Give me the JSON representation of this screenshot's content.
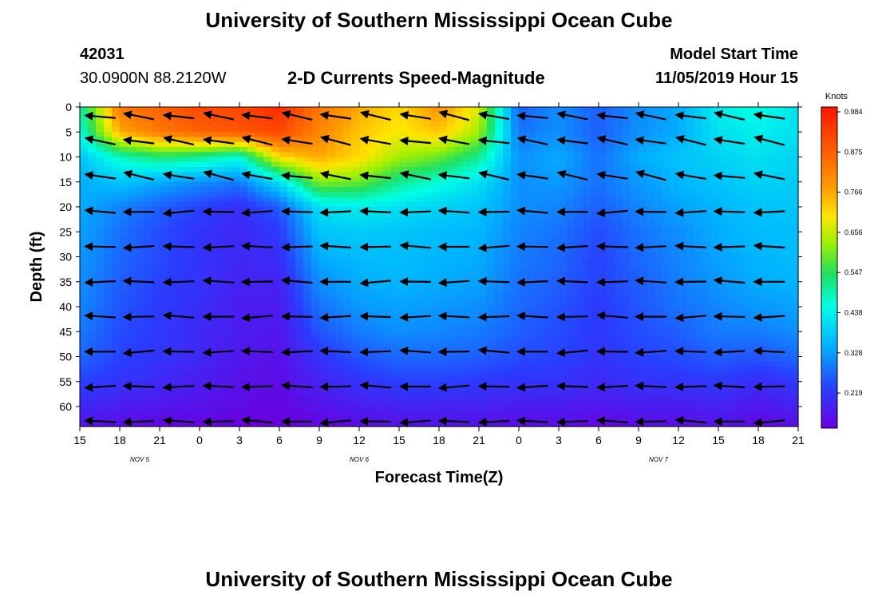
{
  "page": {
    "title_top": "University of Southern Mississippi Ocean Cube",
    "title_bottom": "University of Southern Mississippi Ocean Cube",
    "station_id": "42031",
    "station_coords": "30.0900N 88.2120W",
    "plot_title": "2-D Currents Speed-Magnitude",
    "model_start_label": "Model Start Time",
    "model_start_value": "11/05/2019 Hour 15"
  },
  "colors": {
    "scale": [
      "#6a00e0",
      "#2a3cff",
      "#00b4ff",
      "#00ffe6",
      "#20e060",
      "#a0f000",
      "#ffe600",
      "#ff9a00",
      "#ff5a00",
      "#ff1500"
    ],
    "arrow": "#000000"
  },
  "chart_data": {
    "type": "heatmap",
    "title": "2-D Currents Speed-Magnitude",
    "xlabel": "Forecast Time(Z)",
    "ylabel": "Depth (ft)",
    "x_tick_labels": [
      "15",
      "18",
      "21",
      "0",
      "3",
      "6",
      "9",
      "12",
      "15",
      "18",
      "21",
      "0",
      "3",
      "6",
      "9",
      "12",
      "15",
      "18",
      "21"
    ],
    "x_hours": [
      0,
      3,
      6,
      9,
      12,
      15,
      18,
      21,
      24,
      27,
      30,
      33,
      36,
      39,
      42,
      45,
      48,
      51,
      54
    ],
    "date_labels": [
      {
        "text": "NOV 5",
        "hour": 4.5
      },
      {
        "text": "NOV 6",
        "hour": 21
      },
      {
        "text": "NOV 7",
        "hour": 43.5
      }
    ],
    "y_ticks": [
      0,
      5,
      10,
      15,
      20,
      25,
      30,
      35,
      40,
      45,
      50,
      55,
      60
    ],
    "xlim": [
      0,
      54
    ],
    "ylim": [
      0,
      64
    ],
    "colorbar": {
      "unit": "Knots",
      "labels": [
        "0.984",
        "0.875",
        "0.766",
        "0.656",
        "0.547",
        "0.438",
        "0.328",
        "0.219"
      ],
      "range": [
        0.11,
        0.984
      ]
    },
    "arrow_hours": [
      1.8,
      4.7,
      7.7,
      10.7,
      13.6,
      16.6,
      19.5,
      22.5,
      25.5,
      28.4,
      31.4,
      34.3,
      37.3,
      40.3,
      43.2,
      46.2,
      49.1,
      52.1
    ],
    "arrow_depths": [
      2,
      7,
      14,
      21,
      28,
      35,
      42,
      49,
      56,
      63
    ],
    "speed_grid_knots": {
      "depths_ft": [
        0,
        5,
        10,
        15,
        20,
        25,
        30,
        35,
        40,
        45,
        50,
        55,
        60,
        64
      ],
      "hours": [
        0,
        3,
        6,
        9,
        12,
        15,
        18,
        21,
        24,
        27,
        30,
        33,
        36,
        39,
        42,
        45,
        48,
        51,
        54
      ],
      "values": [
        [
          0.47,
          0.82,
          0.86,
          0.9,
          0.9,
          0.95,
          0.82,
          0.75,
          0.7,
          0.78,
          0.66,
          0.25,
          0.3,
          0.25,
          0.3,
          0.33,
          0.42,
          0.45,
          0.4
        ],
        [
          0.44,
          0.75,
          0.82,
          0.86,
          0.88,
          0.9,
          0.8,
          0.72,
          0.68,
          0.72,
          0.62,
          0.27,
          0.3,
          0.25,
          0.3,
          0.33,
          0.4,
          0.42,
          0.4
        ],
        [
          0.36,
          0.47,
          0.52,
          0.5,
          0.45,
          0.7,
          0.75,
          0.7,
          0.62,
          0.58,
          0.5,
          0.3,
          0.33,
          0.27,
          0.33,
          0.36,
          0.38,
          0.4,
          0.38
        ],
        [
          0.33,
          0.36,
          0.33,
          0.3,
          0.28,
          0.4,
          0.6,
          0.58,
          0.5,
          0.45,
          0.4,
          0.3,
          0.31,
          0.27,
          0.31,
          0.34,
          0.36,
          0.38,
          0.37
        ],
        [
          0.33,
          0.29,
          0.25,
          0.22,
          0.19,
          0.25,
          0.4,
          0.42,
          0.4,
          0.38,
          0.36,
          0.3,
          0.29,
          0.25,
          0.29,
          0.32,
          0.34,
          0.36,
          0.36
        ],
        [
          0.32,
          0.27,
          0.23,
          0.2,
          0.18,
          0.21,
          0.36,
          0.37,
          0.36,
          0.35,
          0.34,
          0.29,
          0.27,
          0.23,
          0.27,
          0.3,
          0.33,
          0.35,
          0.35
        ],
        [
          0.31,
          0.26,
          0.23,
          0.2,
          0.18,
          0.19,
          0.33,
          0.35,
          0.35,
          0.34,
          0.33,
          0.28,
          0.26,
          0.22,
          0.26,
          0.29,
          0.32,
          0.34,
          0.35
        ],
        [
          0.3,
          0.25,
          0.22,
          0.2,
          0.17,
          0.17,
          0.3,
          0.33,
          0.34,
          0.33,
          0.32,
          0.27,
          0.25,
          0.22,
          0.25,
          0.28,
          0.31,
          0.33,
          0.34
        ],
        [
          0.29,
          0.24,
          0.21,
          0.19,
          0.16,
          0.16,
          0.27,
          0.31,
          0.32,
          0.31,
          0.3,
          0.26,
          0.24,
          0.21,
          0.24,
          0.27,
          0.29,
          0.31,
          0.32
        ],
        [
          0.28,
          0.23,
          0.21,
          0.18,
          0.16,
          0.15,
          0.24,
          0.28,
          0.3,
          0.29,
          0.28,
          0.25,
          0.23,
          0.21,
          0.23,
          0.25,
          0.28,
          0.28,
          0.3
        ],
        [
          0.26,
          0.22,
          0.2,
          0.18,
          0.15,
          0.14,
          0.2,
          0.24,
          0.26,
          0.26,
          0.25,
          0.23,
          0.22,
          0.2,
          0.22,
          0.23,
          0.25,
          0.24,
          0.26
        ],
        [
          0.22,
          0.2,
          0.18,
          0.16,
          0.14,
          0.13,
          0.17,
          0.2,
          0.22,
          0.22,
          0.21,
          0.2,
          0.2,
          0.18,
          0.2,
          0.2,
          0.21,
          0.19,
          0.21
        ],
        [
          0.18,
          0.16,
          0.15,
          0.14,
          0.13,
          0.12,
          0.14,
          0.16,
          0.17,
          0.17,
          0.17,
          0.16,
          0.16,
          0.15,
          0.16,
          0.16,
          0.17,
          0.15,
          0.17
        ],
        [
          0.14,
          0.13,
          0.12,
          0.12,
          0.11,
          0.11,
          0.12,
          0.13,
          0.14,
          0.14,
          0.14,
          0.13,
          0.13,
          0.12,
          0.13,
          0.13,
          0.14,
          0.12,
          0.14
        ]
      ]
    }
  }
}
